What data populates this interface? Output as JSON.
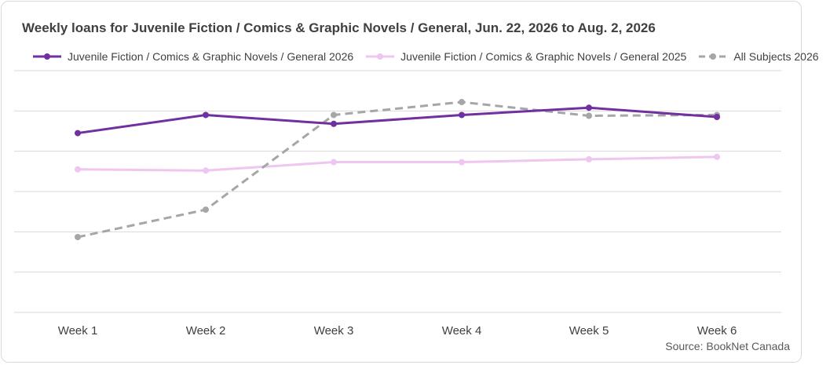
{
  "chart_data": {
    "type": "line",
    "title": "Weekly loans for Juvenile Fiction / Comics & Graphic Novels / General, Jun. 22, 2026 to Aug. 2, 2026",
    "xlabel": "",
    "ylabel": "",
    "categories": [
      "Week 1",
      "Week 2",
      "Week 3",
      "Week 4",
      "Week 5",
      "Week 6"
    ],
    "ylim": [
      0,
      6
    ],
    "grid": true,
    "legend_position": "top",
    "series": [
      {
        "name": "Juvenile Fiction / Comics & Graphic Novels / General 2026",
        "values": [
          4.45,
          4.9,
          4.68,
          4.9,
          5.08,
          4.85
        ],
        "color": "#7030a0",
        "dash": "solid"
      },
      {
        "name": "Juvenile Fiction / Comics & Graphic Novels / General 2025",
        "values": [
          3.55,
          3.52,
          3.73,
          3.73,
          3.8,
          3.86
        ],
        "color": "#efc6ef",
        "dash": "solid"
      },
      {
        "name": "All Subjects 2026",
        "values": [
          1.87,
          2.55,
          4.9,
          5.22,
          4.88,
          4.9
        ],
        "color": "#a6a6a6",
        "dash": "dashed"
      }
    ]
  },
  "source": "Source: BookNet Canada"
}
